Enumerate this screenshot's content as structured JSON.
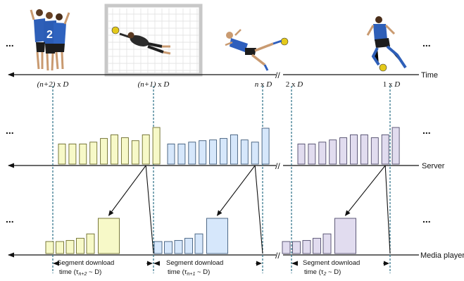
{
  "ellipsis": "...",
  "timeline": {
    "label": "Time",
    "marks": [
      {
        "index": "(n+2)",
        "suffix": " x ",
        "unit": "D"
      },
      {
        "index": "(n+1)",
        "suffix": " x ",
        "unit": "D"
      },
      {
        "index": "n",
        "suffix": " x ",
        "unit": "D"
      },
      {
        "index": "2",
        "suffix": " x ",
        "unit": "D"
      },
      {
        "index": "1",
        "suffix": " x ",
        "unit": "D"
      }
    ]
  },
  "rows": {
    "server": "Server",
    "player": "Media player"
  },
  "break_mark": "//",
  "download_labels": [
    {
      "line1": "Segment download",
      "line2_prefix": "time (τ",
      "sub": "n+2",
      "line2_suffix": " ~ D)"
    },
    {
      "line1": "Segment download",
      "line2_prefix": "time (τ",
      "sub": "n+1",
      "line2_suffix": " ~ D)"
    },
    {
      "line1": "Segment download",
      "line2_prefix": "time (τ",
      "sub": "2",
      "line2_suffix": " ~ D)"
    }
  ],
  "groups": [
    {
      "fill": "#f7f9c8",
      "stroke": "#6b6b2a",
      "server_bars": [
        0.55,
        0.55,
        0.55,
        0.6,
        0.7,
        0.8,
        0.72,
        0.64,
        0.8,
        1.0
      ],
      "player_bars": [
        0.55,
        0.55,
        0.6,
        0.7,
        0.9
      ],
      "player_big": 1.0
    },
    {
      "fill": "#d6e7fb",
      "stroke": "#3e5a7a",
      "server_bars": [
        0.55,
        0.55,
        0.6,
        0.64,
        0.66,
        0.7,
        0.8,
        0.66,
        0.6,
        0.98
      ],
      "player_bars": [
        0.55,
        0.55,
        0.6,
        0.7,
        0.9
      ],
      "player_big": 1.0
    },
    {
      "fill": "#e1dcef",
      "stroke": "#4f4a6a",
      "server_bars": [
        0.55,
        0.55,
        0.6,
        0.66,
        0.72,
        0.8,
        0.8,
        0.72,
        0.8,
        1.0
      ],
      "player_bars": [
        0.55,
        0.55,
        0.6,
        0.7,
        0.9
      ],
      "player_big": 1.0
    }
  ]
}
